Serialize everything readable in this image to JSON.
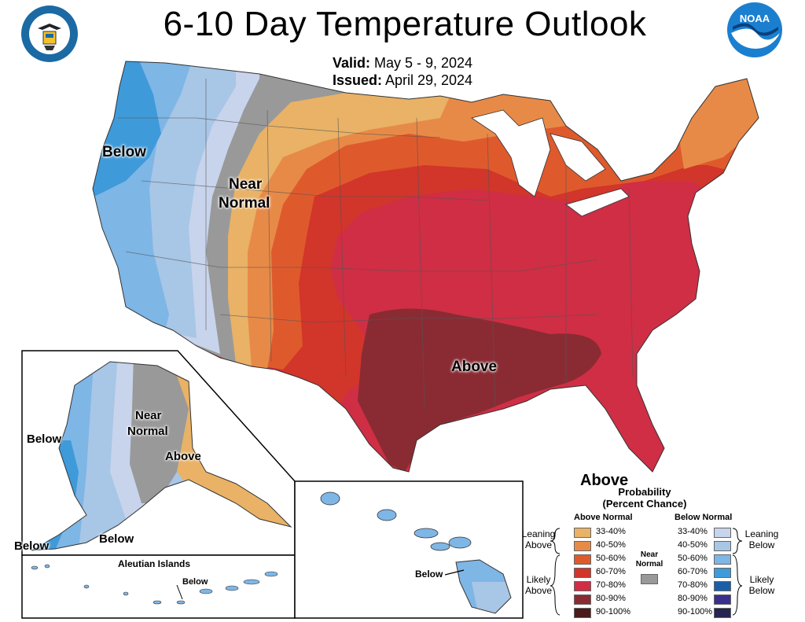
{
  "header": {
    "title": "6-10 Day Temperature Outlook",
    "valid_label": "Valid:",
    "valid_value": "May 5 - 9, 2024",
    "issued_label": "Issued:",
    "issued_value": "April 29, 2024"
  },
  "logos": {
    "left": "department-of-commerce-seal",
    "right": "noaa-logo"
  },
  "map_labels": {
    "conus_below": "Below",
    "conus_near_normal_1": "Near",
    "conus_near_normal_2": "Normal",
    "conus_above": "Above",
    "conus_above_2": "Above",
    "alaska_below_west": "Below",
    "alaska_below_sw": "Below",
    "alaska_below_south": "Below",
    "alaska_near_1": "Near",
    "alaska_near_2": "Normal",
    "alaska_above": "Above",
    "aleutian_title": "Aleutian Islands",
    "aleutian_below": "Below",
    "hawaii_below": "Below"
  },
  "legend": {
    "probability": "Probability",
    "percent_chance": "(Percent Chance)",
    "above_normal_header": "Above Normal",
    "below_normal_header": "Below Normal",
    "leaning_above": "Leaning Above",
    "likely_above": "Likely Above",
    "leaning_below": "Leaning Below",
    "likely_below": "Likely Below",
    "near_normal": "Near Normal",
    "above_items": [
      {
        "range": "33-40%",
        "color": "#e9b266"
      },
      {
        "range": "40-50%",
        "color": "#e88a47"
      },
      {
        "range": "50-60%",
        "color": "#de5a2d"
      },
      {
        "range": "60-70%",
        "color": "#d2352a"
      },
      {
        "range": "70-80%",
        "color": "#cf2e45"
      },
      {
        "range": "80-90%",
        "color": "#8a2b33"
      },
      {
        "range": "90-100%",
        "color": "#4a1a1c"
      }
    ],
    "below_items": [
      {
        "range": "33-40%",
        "color": "#c8d4ec"
      },
      {
        "range": "40-50%",
        "color": "#a8c6e6"
      },
      {
        "range": "50-60%",
        "color": "#7eb6e6"
      },
      {
        "range": "60-70%",
        "color": "#3f9ad9"
      },
      {
        "range": "70-80%",
        "color": "#1b5ea8"
      },
      {
        "range": "80-90%",
        "color": "#3a2f8c"
      },
      {
        "range": "90-100%",
        "color": "#262450"
      }
    ],
    "near_normal_color": "#999999"
  }
}
